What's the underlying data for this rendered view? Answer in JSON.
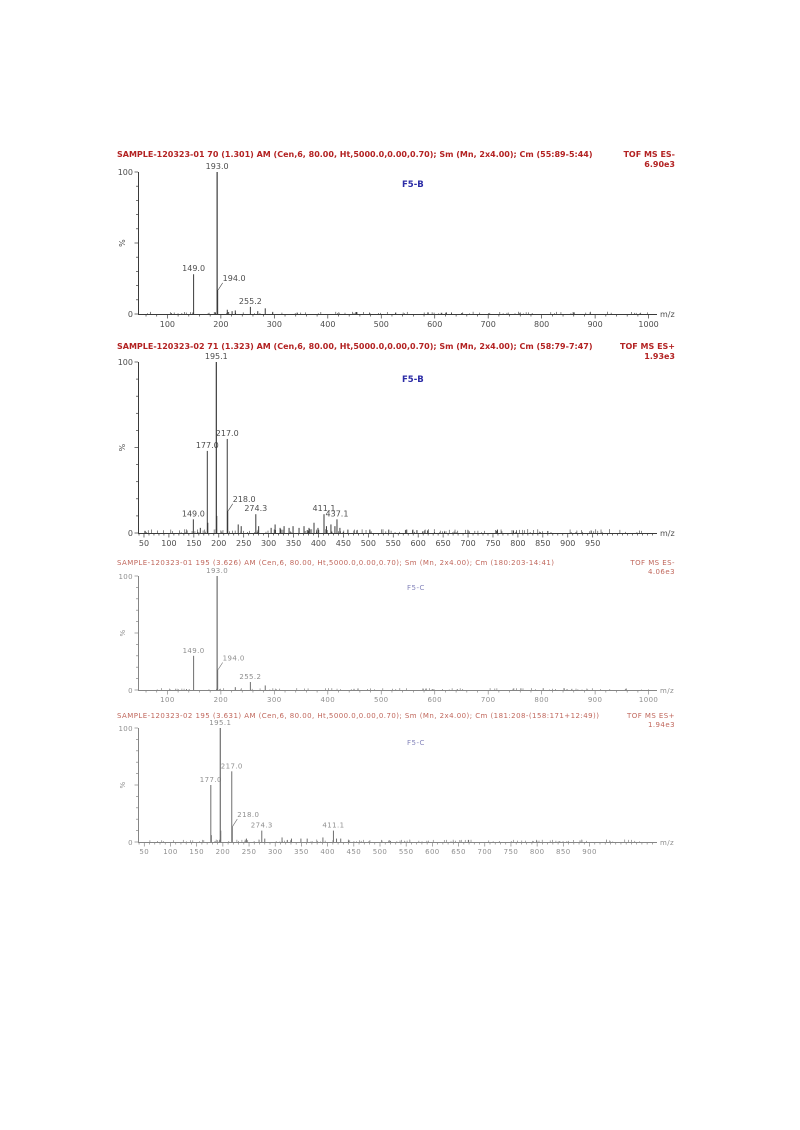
{
  "page": {
    "background": "#ffffff"
  },
  "styles": {
    "a": {
      "header": "#b32222",
      "compound": "#2b2ba6",
      "stick": "#3a3a3a",
      "label": "#4d4d4d",
      "axis": "#3a3a3a"
    },
    "b": {
      "header": "#c0675c",
      "compound": "#8585bb",
      "stick": "#6e6e6e",
      "label": "#8f8f8f",
      "axis": "#858585"
    }
  },
  "panels": [
    {
      "header": "SAMPLE-120323-01 70 (1.301) AM (Cen,6, 80.00, Ht,5000.0,0.00,0.70); Sm (Mn, 2x4.00); Cm (55:89-5:44)",
      "mode": "TOF MS ES-",
      "intensity": "6.90e3",
      "compound": "F5-B",
      "style": "a"
    },
    {
      "header": "SAMPLE-120323-02 71 (1.323) AM (Cen,6, 80.00, Ht,5000.0,0.00,0.70); Sm (Mn, 2x4.00); Cm (58:79-7:47)",
      "mode": "TOF MS ES+",
      "intensity": "1.93e3",
      "compound": "F5-B",
      "style": "a"
    },
    {
      "header": "SAMPLE-120323-01 195 (3.626) AM (Cen,6, 80.00, Ht,5000.0,0.00,0.70); Sm (Mn, 2x4.00); Cm (180:203-14:41)",
      "mode": "TOF MS ES-",
      "intensity": "4.06e3",
      "compound": "F5-C",
      "style": "b"
    },
    {
      "header": "SAMPLE-120323-02 195 (3.631) AM (Cen,6, 80.00, Ht,5000.0,0.00,0.70); Sm (Mn, 2x4.00); Cm (181:208-(158:171+12:49))",
      "mode": "TOF MS ES+",
      "intensity": "1.94e3",
      "compound": "F5-C",
      "style": "b"
    }
  ],
  "chart_data": [
    {
      "type": "bar",
      "title": "SAMPLE-120323-01 70 (1.301) TOF MS ES- 6.90e3 (F5-B)",
      "xlabel": "m/z",
      "ylabel": "%",
      "ylim": [
        0,
        100
      ],
      "xlim": [
        45,
        1012
      ],
      "x_ticks": {
        "start": 100,
        "end": 1000,
        "step": 100,
        "minor": 20
      },
      "y_tick_labels": [
        "0",
        "100"
      ],
      "noise": {
        "seed": 11,
        "from": 60,
        "to": 1000,
        "count": 110,
        "max": 1.2
      },
      "peaks": [
        {
          "mz": 149.0,
          "i": 28,
          "label": "149.0"
        },
        {
          "mz": 193.0,
          "i": 100,
          "label": "193.0"
        },
        {
          "mz": 194.0,
          "i": 17,
          "label": "194.0",
          "leader": true
        },
        {
          "mz": 212,
          "i": 3
        },
        {
          "mz": 221,
          "i": 2
        },
        {
          "mz": 227,
          "i": 2.5
        },
        {
          "mz": 255.2,
          "i": 5,
          "label": "255.2"
        },
        {
          "mz": 269,
          "i": 2
        },
        {
          "mz": 283,
          "i": 4
        },
        {
          "mz": 297,
          "i": 1.5
        }
      ]
    },
    {
      "type": "bar",
      "title": "SAMPLE-120323-02 71 (1.323) TOF MS ES+ 1.93e3 (F5-B)",
      "xlabel": "m/z",
      "ylabel": "%",
      "ylim": [
        0,
        100
      ],
      "xlim": [
        38,
        1075
      ],
      "x_ticks": {
        "start": 50,
        "end": 950,
        "step": 50,
        "minor": 10
      },
      "y_tick_labels": [
        "0",
        "100"
      ],
      "noise": {
        "seed": 22,
        "from": 50,
        "to": 1050,
        "count": 160,
        "max": 2
      },
      "peaks": [
        {
          "mz": 149.0,
          "i": 8,
          "label": "149.0"
        },
        {
          "mz": 163,
          "i": 3
        },
        {
          "mz": 177.0,
          "i": 48,
          "label": "177.0"
        },
        {
          "mz": 178,
          "i": 6
        },
        {
          "mz": 195.1,
          "i": 100,
          "label": "195.1"
        },
        {
          "mz": 196,
          "i": 10
        },
        {
          "mz": 217.0,
          "i": 55,
          "label": "217.0"
        },
        {
          "mz": 218.0,
          "i": 13,
          "label": "218.0",
          "leader": true
        },
        {
          "mz": 239,
          "i": 5
        },
        {
          "mz": 245,
          "i": 4
        },
        {
          "mz": 274.3,
          "i": 11,
          "label": "274.3"
        },
        {
          "mz": 280,
          "i": 4
        },
        {
          "mz": 305,
          "i": 3
        },
        {
          "mz": 313,
          "i": 5
        },
        {
          "mz": 323,
          "i": 3
        },
        {
          "mz": 331,
          "i": 4
        },
        {
          "mz": 341,
          "i": 3
        },
        {
          "mz": 349,
          "i": 4
        },
        {
          "mz": 361,
          "i": 3
        },
        {
          "mz": 371,
          "i": 4
        },
        {
          "mz": 381,
          "i": 3
        },
        {
          "mz": 391,
          "i": 6
        },
        {
          "mz": 399,
          "i": 3
        },
        {
          "mz": 411.1,
          "i": 11,
          "label": "411.1"
        },
        {
          "mz": 416,
          "i": 4
        },
        {
          "mz": 425,
          "i": 5
        },
        {
          "mz": 433,
          "i": 4
        },
        {
          "mz": 437.1,
          "i": 8,
          "label": "437.1"
        },
        {
          "mz": 443,
          "i": 3
        },
        {
          "mz": 459,
          "i": 2
        },
        {
          "mz": 503,
          "i": 2
        },
        {
          "mz": 541,
          "i": 2
        },
        {
          "mz": 577,
          "i": 2
        },
        {
          "mz": 619,
          "i": 1.5
        },
        {
          "mz": 700,
          "i": 1.5
        },
        {
          "mz": 759,
          "i": 2
        },
        {
          "mz": 791,
          "i": 1.5
        },
        {
          "mz": 860,
          "i": 1.2
        }
      ]
    },
    {
      "type": "bar",
      "title": "SAMPLE-120323-01 195 (3.626) TOF MS ES- 4.06e3 (F5-C)",
      "xlabel": "m/z",
      "ylabel": "%",
      "ylim": [
        0,
        100
      ],
      "xlim": [
        45,
        1012
      ],
      "x_ticks": {
        "start": 100,
        "end": 1000,
        "step": 100,
        "minor": 20
      },
      "y_tick_labels": [
        "0",
        "100"
      ],
      "noise": {
        "seed": 33,
        "from": 60,
        "to": 1000,
        "count": 100,
        "max": 1.3
      },
      "peaks": [
        {
          "mz": 149.0,
          "i": 30,
          "label": "149.0"
        },
        {
          "mz": 193.0,
          "i": 100,
          "label": "193.0"
        },
        {
          "mz": 194.0,
          "i": 18,
          "label": "194.0",
          "leader": true
        },
        {
          "mz": 227,
          "i": 2.5
        },
        {
          "mz": 255.2,
          "i": 7,
          "label": "255.2"
        },
        {
          "mz": 283,
          "i": 4
        }
      ]
    },
    {
      "type": "bar",
      "title": "SAMPLE-120323-02 195 (3.631) TOF MS ES+ 1.94e3 (F5-C)",
      "xlabel": "m/z",
      "ylabel": "%",
      "ylim": [
        0,
        100
      ],
      "xlim": [
        38,
        1025
      ],
      "x_ticks": {
        "start": 50,
        "end": 900,
        "step": 50,
        "minor": 10
      },
      "y_tick_labels": [
        "0",
        "100"
      ],
      "noise": {
        "seed": 44,
        "from": 45,
        "to": 1000,
        "count": 130,
        "max": 1.8
      },
      "peaks": [
        {
          "mz": 177.0,
          "i": 50,
          "label": "177.0"
        },
        {
          "mz": 178,
          "i": 6
        },
        {
          "mz": 195.1,
          "i": 100,
          "label": "195.1"
        },
        {
          "mz": 196,
          "i": 10
        },
        {
          "mz": 217.0,
          "i": 62,
          "label": "217.0"
        },
        {
          "mz": 218.0,
          "i": 14,
          "label": "218.0",
          "leader": true
        },
        {
          "mz": 245,
          "i": 3
        },
        {
          "mz": 274.3,
          "i": 10,
          "label": "274.3"
        },
        {
          "mz": 280,
          "i": 3
        },
        {
          "mz": 313,
          "i": 4
        },
        {
          "mz": 331,
          "i": 3
        },
        {
          "mz": 349,
          "i": 3
        },
        {
          "mz": 361,
          "i": 3
        },
        {
          "mz": 391,
          "i": 4
        },
        {
          "mz": 411.1,
          "i": 10,
          "label": "411.1"
        },
        {
          "mz": 417,
          "i": 3
        },
        {
          "mz": 425,
          "i": 3
        }
      ]
    }
  ]
}
